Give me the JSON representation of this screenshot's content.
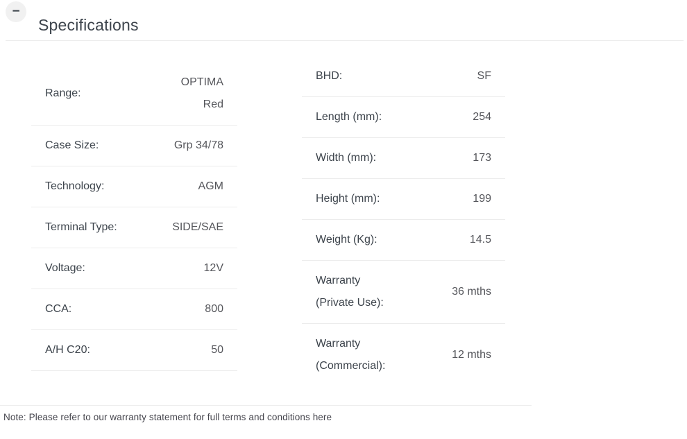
{
  "header": {
    "title": "Specifications",
    "collapse_icon": "−"
  },
  "spec_tables": {
    "left": [
      {
        "label": "Range:",
        "value": "OPTIMA Red"
      },
      {
        "label": "Case Size:",
        "value": "Grp 34/78"
      },
      {
        "label": "Technology:",
        "value": "AGM"
      },
      {
        "label": "Terminal Type:",
        "value": "SIDE/SAE"
      },
      {
        "label": "Voltage:",
        "value": "12V"
      },
      {
        "label": "CCA:",
        "value": "800"
      },
      {
        "label": "A/H C20:",
        "value": "50"
      }
    ],
    "right": [
      {
        "label": "BHD:",
        "value": "SF"
      },
      {
        "label": "Length (mm):",
        "value": "254"
      },
      {
        "label": "Width (mm):",
        "value": "173"
      },
      {
        "label": "Height (mm):",
        "value": "199"
      },
      {
        "label": "Weight (Kg):",
        "value": "14.5"
      },
      {
        "label": "Warranty (Private Use):",
        "value": "36 mths"
      },
      {
        "label": "Warranty (Commercial):",
        "value": "12 mths"
      }
    ]
  },
  "footer": {
    "note": "Note: Please refer to our warranty statement for full terms and conditions here"
  },
  "colors": {
    "title_text": "#3d444c",
    "label_text": "#3d444c",
    "value_text": "#55565b",
    "divider": "#ececec",
    "icon_circle_bg": "#f1f1f1"
  }
}
